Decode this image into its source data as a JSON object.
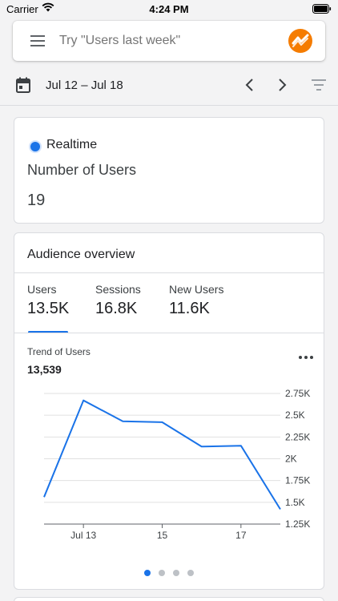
{
  "status_bar": {
    "carrier": "Carrier",
    "time": "4:24 PM"
  },
  "search": {
    "placeholder": "Try \"Users last week\""
  },
  "date": {
    "range": "Jul 12 – Jul 18"
  },
  "realtime": {
    "label": "Realtime",
    "metric": "Number of Users",
    "value": "19"
  },
  "audience": {
    "title": "Audience overview",
    "tabs": [
      {
        "label": "Users",
        "value": "13.5K"
      },
      {
        "label": "Sessions",
        "value": "16.8K"
      },
      {
        "label": "New Users",
        "value": "11.6K"
      }
    ],
    "selected_tab": 0
  },
  "trend": {
    "title": "Trend of Users",
    "value": "13,539"
  },
  "colors": {
    "accent": "#1a73e8",
    "logo_orange": "#f57c00",
    "gridline": "#e0e0e0"
  },
  "icons": {
    "menu": "hamburger-menu-icon",
    "logo": "analytics-logo-icon",
    "calendar": "calendar-icon",
    "prev": "chevron-left-icon",
    "next": "chevron-right-icon",
    "filter": "filter-icon",
    "more": "more-horizontal-icon"
  },
  "pager": {
    "count": 4,
    "active": 0
  },
  "chart_data": {
    "type": "line",
    "x": [
      "Jul 12",
      "Jul 13",
      "Jul 14",
      "Jul 15",
      "Jul 16",
      "Jul 17",
      "Jul 18"
    ],
    "x_tick_labels": [
      {
        "x": "Jul 13",
        "label": "Jul 13"
      },
      {
        "x": "Jul 15",
        "label": "15"
      },
      {
        "x": "Jul 17",
        "label": "17"
      }
    ],
    "series": [
      {
        "values": [
          1560,
          2670,
          2430,
          2420,
          2140,
          2150,
          1420
        ]
      }
    ],
    "ylim": [
      1250,
      2750
    ],
    "y_ticks": [
      2750,
      2500,
      2250,
      2000,
      1750,
      1500,
      1250
    ],
    "y_tick_labels": [
      "2.75K",
      "2.5K",
      "2.25K",
      "2K",
      "1.75K",
      "1.5K",
      "1.25K"
    ],
    "grid": true,
    "y_axis_position": "right"
  }
}
